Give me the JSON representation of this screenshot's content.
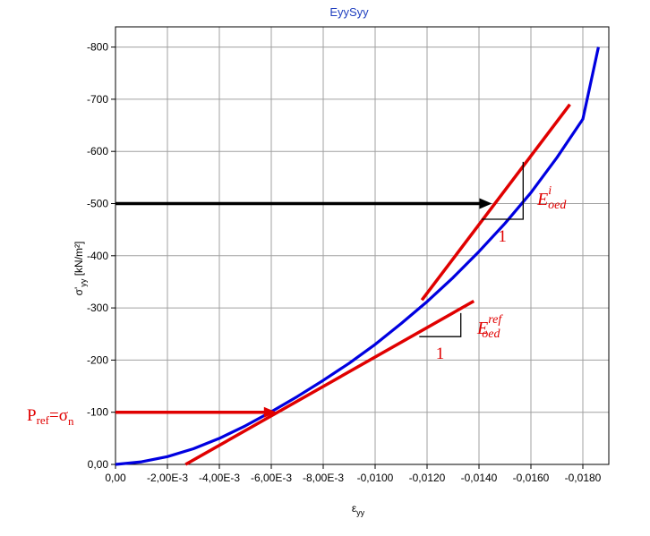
{
  "chart_data": {
    "type": "line",
    "title": "EyySyy",
    "xlabel": "εyy",
    "ylabel": "σ'yy [kN/m²]",
    "xlim": [
      0,
      -0.0195
    ],
    "ylim": [
      0,
      -870
    ],
    "x_ticks": [
      0,
      -0.002,
      -0.004,
      -0.006,
      -0.008,
      -0.01,
      -0.012,
      -0.014,
      -0.016,
      -0.018
    ],
    "x_tick_labels": [
      "0,00",
      "-2,00E-3",
      "-4,00E-3",
      "-6,00E-3",
      "-8,00E-3",
      "-0,0100",
      "-0,0120",
      "-0,0140",
      "-0,0160",
      "-0,0180"
    ],
    "y_ticks": [
      0,
      -100,
      -200,
      -300,
      -400,
      -500,
      -600,
      -700,
      -800
    ],
    "y_tick_labels": [
      "0,00",
      "-100",
      "-200",
      "-300",
      "-400",
      "-500",
      "-600",
      "-700",
      "-800"
    ],
    "grid": true,
    "series": [
      {
        "color": "#0000e0",
        "x": [
          0,
          -0.001,
          -0.002,
          -0.003,
          -0.004,
          -0.005,
          -0.006,
          -0.007,
          -0.008,
          -0.009,
          -0.01,
          -0.011,
          -0.012,
          -0.013,
          -0.014,
          -0.015,
          -0.016,
          -0.017,
          -0.018,
          -0.0186
        ],
        "y": [
          0,
          -5,
          -15,
          -30,
          -50,
          -74,
          -101,
          -130,
          -161,
          -194,
          -230,
          -270,
          -312,
          -358,
          -408,
          -462,
          -521,
          -588,
          -662,
          -800
        ]
      }
    ],
    "tangent_lines": [
      {
        "color": "#e00000",
        "x": [
          -0.0027,
          -0.0138
        ],
        "y": [
          0,
          -313
        ]
      },
      {
        "color": "#e00000",
        "x": [
          -0.0118,
          -0.0175
        ],
        "y": [
          -315,
          -690
        ]
      }
    ],
    "arrows": [
      {
        "color": "#000000",
        "x": [
          0,
          -0.0145
        ],
        "y": [
          -500,
          -500
        ]
      },
      {
        "color": "#e00000",
        "x": [
          0,
          -0.0062
        ],
        "y": [
          -100,
          -100
        ]
      }
    ],
    "slope_triangles": [
      {
        "label": "1",
        "x": [
          -0.0157,
          -0.0157,
          -0.0141
        ],
        "y": [
          -580,
          -470,
          -470
        ]
      },
      {
        "label": "1",
        "x": [
          -0.0133,
          -0.0133,
          -0.0117
        ],
        "y": [
          -290,
          -245,
          -245
        ]
      }
    ],
    "annotations": [
      {
        "text": "P",
        "sub": "ref",
        "text2": "=σ",
        "sub2": "n"
      },
      {
        "text": "E",
        "sup": "i",
        "sub": "oed"
      },
      {
        "text": "E",
        "sup": "ref",
        "sub": "oed"
      }
    ]
  }
}
